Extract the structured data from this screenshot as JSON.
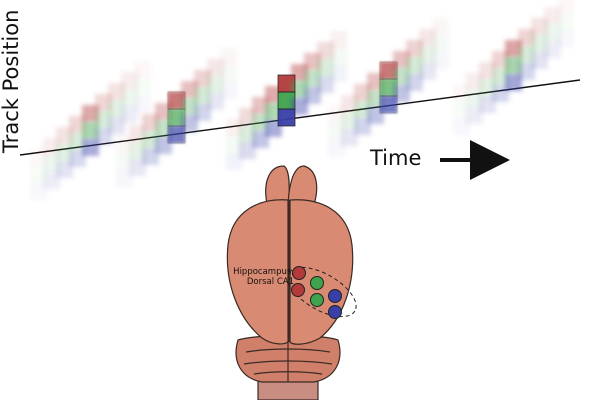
{
  "diagram": {
    "y_axis_label": "Track Position",
    "x_axis_label": "Time",
    "region_label_line1": "Hippocampus,",
    "region_label_line2": "Dorsal CA1",
    "cell_colors": [
      "#b23a3a",
      "#3fa34d",
      "#3a3fa8"
    ],
    "line_color": "#000000",
    "brain_color": "#d98a72",
    "brain_outline": "#333333"
  }
}
